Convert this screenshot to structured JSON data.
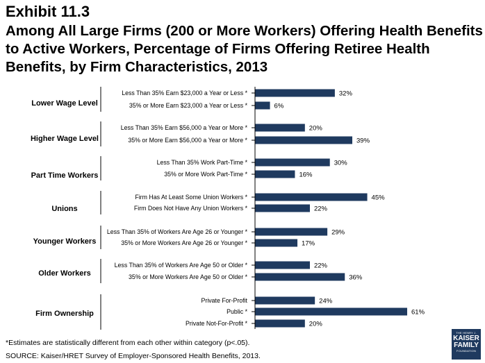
{
  "header": {
    "exhibit": "Exhibit 11.3",
    "title": "Among All Large Firms (200 or More Workers) Offering Health Benefits to Active Workers, Percentage of Firms Offering Retiree Health Benefits, by Firm Characteristics, 2013"
  },
  "chart_data": {
    "type": "bar",
    "orientation": "horizontal",
    "xlim": [
      0,
      100
    ],
    "bar_color": "#1f3a5f",
    "groups": [
      {
        "name": "Lower Wage Level",
        "items": [
          {
            "label": "Less Than 35% Earn $23,000 a Year or Less *",
            "value": 32,
            "value_label": "32%"
          },
          {
            "label": "35% or More Earn $23,000 a Year or Less *",
            "value": 6,
            "value_label": "6%"
          }
        ]
      },
      {
        "name": "Higher Wage Level",
        "items": [
          {
            "label": "Less Than 35% Earn $56,000 a Year or More *",
            "value": 20,
            "value_label": "20%"
          },
          {
            "label": "35% or More Earn $56,000 a Year or More *",
            "value": 39,
            "value_label": "39%"
          }
        ]
      },
      {
        "name": "Part Time Workers",
        "items": [
          {
            "label": "Less Than 35% Work Part-Time *",
            "value": 30,
            "value_label": "30%"
          },
          {
            "label": "35% or More Work Part-Time *",
            "value": 16,
            "value_label": "16%"
          }
        ]
      },
      {
        "name": "Unions",
        "items": [
          {
            "label": "Firm Has At Least Some Union Workers *",
            "value": 45,
            "value_label": "45%"
          },
          {
            "label": "Firm Does Not Have Any Union Workers *",
            "value": 22,
            "value_label": "22%"
          }
        ]
      },
      {
        "name": "Younger Workers",
        "items": [
          {
            "label": "Less Than 35% of Workers Are Age 26 or Younger *",
            "value": 29,
            "value_label": "29%"
          },
          {
            "label": "35% or More Workers Are Age 26 or Younger *",
            "value": 17,
            "value_label": "17%"
          }
        ]
      },
      {
        "name": "Older Workers",
        "items": [
          {
            "label": "Less Than 35% of Workers Are Age 50 or Older *",
            "value": 22,
            "value_label": "22%"
          },
          {
            "label": "35% or More Workers Are Age 50 or Older *",
            "value": 36,
            "value_label": "36%"
          }
        ]
      },
      {
        "name": "Firm Ownership",
        "items": [
          {
            "label": "Private For-Profit",
            "value": 24,
            "value_label": "24%"
          },
          {
            "label": "Public *",
            "value": 61,
            "value_label": "61%"
          },
          {
            "label": "Private Not-For-Profit *",
            "value": 20,
            "value_label": "20%"
          }
        ]
      }
    ]
  },
  "footer": {
    "footnote": "*Estimates are statistically different from each other within category (p<.05).",
    "source": "SOURCE:  Kaiser/HRET Survey of Employer-Sponsored Health Benefits, 2013."
  },
  "logo": {
    "line1": "THE HENRY J.",
    "line2": "KAISER",
    "line3": "FAMILY",
    "line4": "FOUNDATION"
  }
}
